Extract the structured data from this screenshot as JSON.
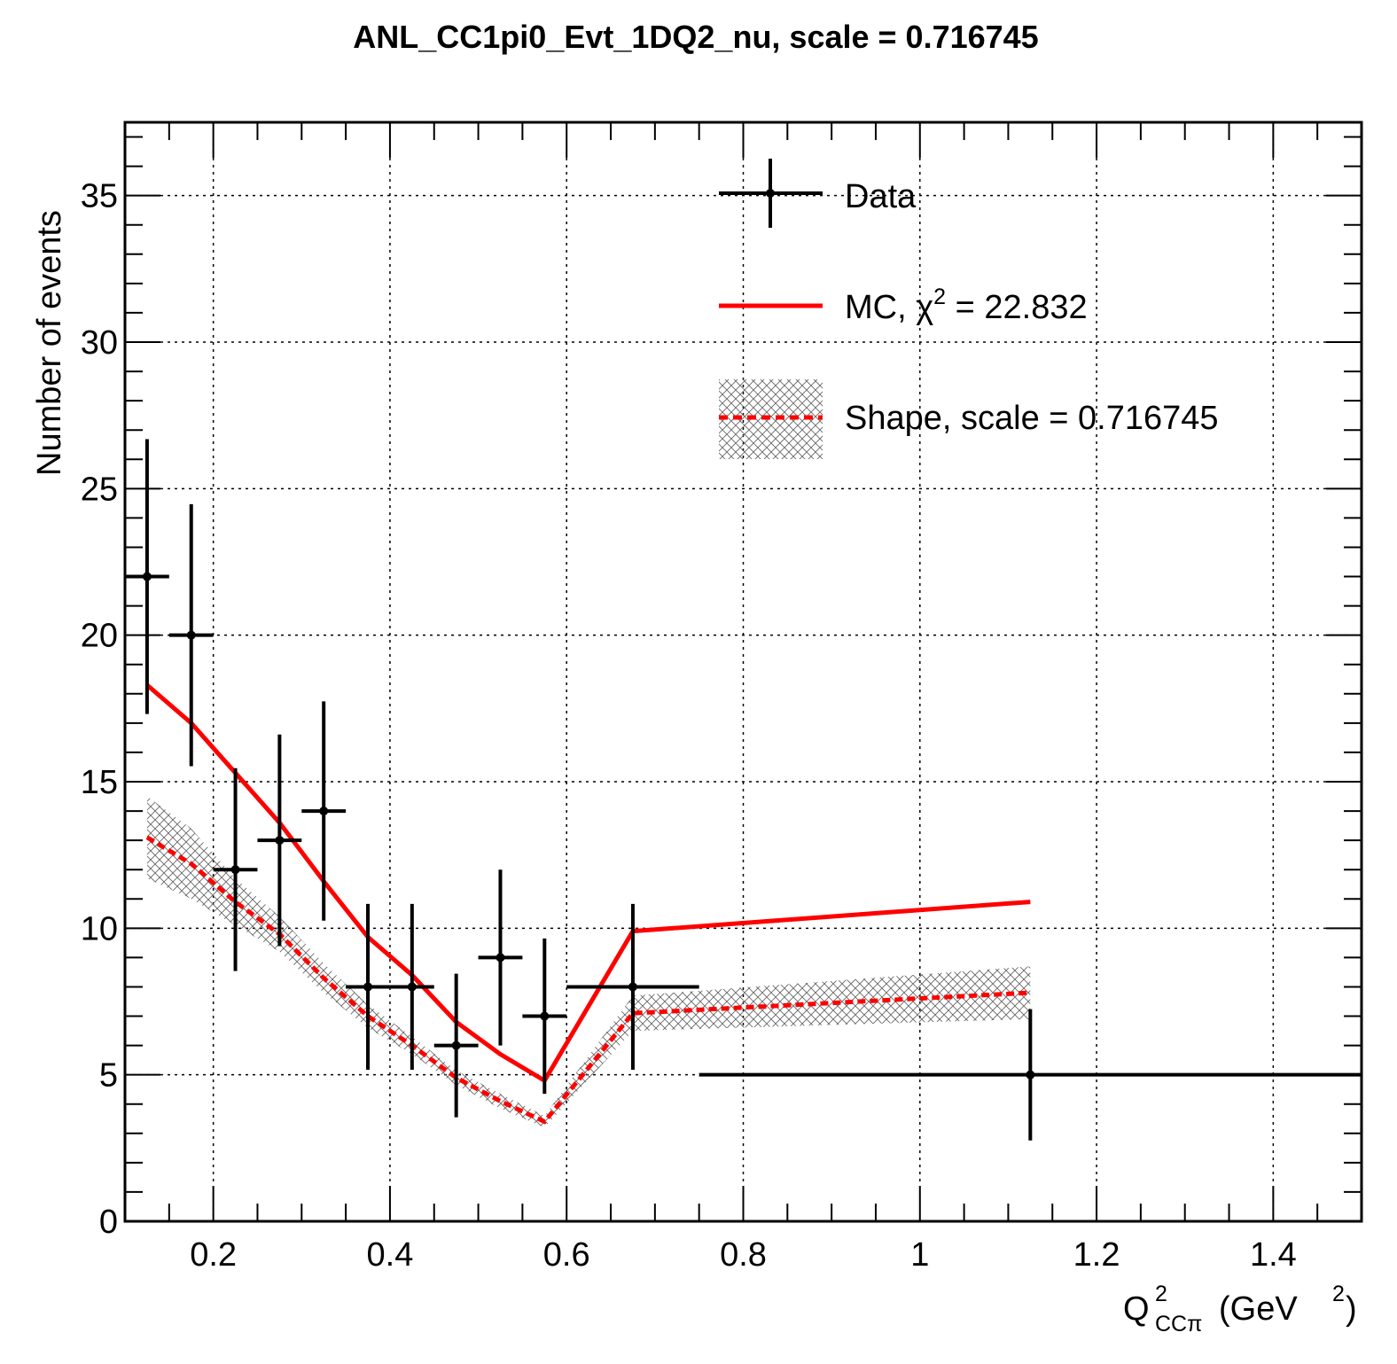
{
  "chart_data": {
    "type": "line",
    "title": "ANL_CC1pi0_Evt_1DQ2_nu, scale = 0.716745",
    "xlabel": {
      "base": "Q",
      "sup": "2",
      "sub": "CCπ",
      "unit": "(GeV",
      "unit_sup": "2",
      "unit_close": ")"
    },
    "ylabel": "Number of events",
    "xlim": [
      0.1,
      1.5
    ],
    "ylim": [
      0,
      37.5
    ],
    "x_ticks": [
      {
        "value": 0.2,
        "label": "0.2"
      },
      {
        "value": 0.4,
        "label": "0.4"
      },
      {
        "value": 0.6,
        "label": "0.6"
      },
      {
        "value": 0.8,
        "label": "0.8"
      },
      {
        "value": 1.0,
        "label": "1"
      },
      {
        "value": 1.2,
        "label": "1.2"
      },
      {
        "value": 1.4,
        "label": "1.4"
      }
    ],
    "y_ticks": [
      {
        "value": 0,
        "label": "0"
      },
      {
        "value": 5,
        "label": "5"
      },
      {
        "value": 10,
        "label": "10"
      },
      {
        "value": 15,
        "label": "15"
      },
      {
        "value": 20,
        "label": "20"
      },
      {
        "value": 25,
        "label": "25"
      },
      {
        "value": 30,
        "label": "30"
      },
      {
        "value": 35,
        "label": "35"
      }
    ],
    "grid": true,
    "legend_position": "top-right",
    "legend": {
      "data": "Data",
      "mc_prefix": "MC, ",
      "mc_chi": "χ",
      "mc_chi_sup": "2",
      "mc_suffix": " = 22.832",
      "shape": "Shape, scale = 0.716745"
    },
    "data_series": {
      "name": "Data",
      "color": "#000000",
      "points": [
        {
          "x": 0.125,
          "xlo": 0.1,
          "xhi": 0.15,
          "y": 22,
          "err": 4.69
        },
        {
          "x": 0.175,
          "xlo": 0.15,
          "xhi": 0.2,
          "y": 20,
          "err": 4.47
        },
        {
          "x": 0.225,
          "xlo": 0.2,
          "xhi": 0.25,
          "y": 12,
          "err": 3.46
        },
        {
          "x": 0.275,
          "xlo": 0.25,
          "xhi": 0.3,
          "y": 13,
          "err": 3.61
        },
        {
          "x": 0.325,
          "xlo": 0.3,
          "xhi": 0.35,
          "y": 14,
          "err": 3.74
        },
        {
          "x": 0.375,
          "xlo": 0.35,
          "xhi": 0.4,
          "y": 8,
          "err": 2.83
        },
        {
          "x": 0.425,
          "xlo": 0.4,
          "xhi": 0.45,
          "y": 8,
          "err": 2.83
        },
        {
          "x": 0.475,
          "xlo": 0.45,
          "xhi": 0.5,
          "y": 6,
          "err": 2.45
        },
        {
          "x": 0.525,
          "xlo": 0.5,
          "xhi": 0.55,
          "y": 9,
          "err": 3.0
        },
        {
          "x": 0.575,
          "xlo": 0.55,
          "xhi": 0.6,
          "y": 7,
          "err": 2.65
        },
        {
          "x": 0.675,
          "xlo": 0.6,
          "xhi": 0.75,
          "y": 8,
          "err": 2.83
        },
        {
          "x": 1.125,
          "xlo": 0.75,
          "xhi": 1.5,
          "y": 5,
          "err": 2.24
        }
      ]
    },
    "mc_series": {
      "name": "MC, χ² = 22.832",
      "color": "#ff0000",
      "x": [
        0.125,
        0.175,
        0.225,
        0.275,
        0.325,
        0.375,
        0.425,
        0.475,
        0.525,
        0.575,
        0.675,
        1.125
      ],
      "y": [
        18.3,
        17.0,
        15.3,
        13.6,
        11.6,
        9.7,
        8.4,
        6.8,
        5.7,
        4.8,
        9.9,
        10.9
      ]
    },
    "shape_series": {
      "name": "Shape, scale = 0.716745",
      "color": "#ff0000",
      "band_color": "#888888",
      "x": [
        0.125,
        0.175,
        0.225,
        0.275,
        0.325,
        0.375,
        0.425,
        0.475,
        0.525,
        0.575,
        0.675,
        1.125
      ],
      "y": [
        13.1,
        12.2,
        10.9,
        9.8,
        8.3,
        7.0,
        6.0,
        4.9,
        4.1,
        3.4,
        7.1,
        7.8
      ],
      "err": [
        1.4,
        1.2,
        0.8,
        0.6,
        0.5,
        0.4,
        0.3,
        0.25,
        0.25,
        0.2,
        0.6,
        0.9
      ]
    }
  }
}
